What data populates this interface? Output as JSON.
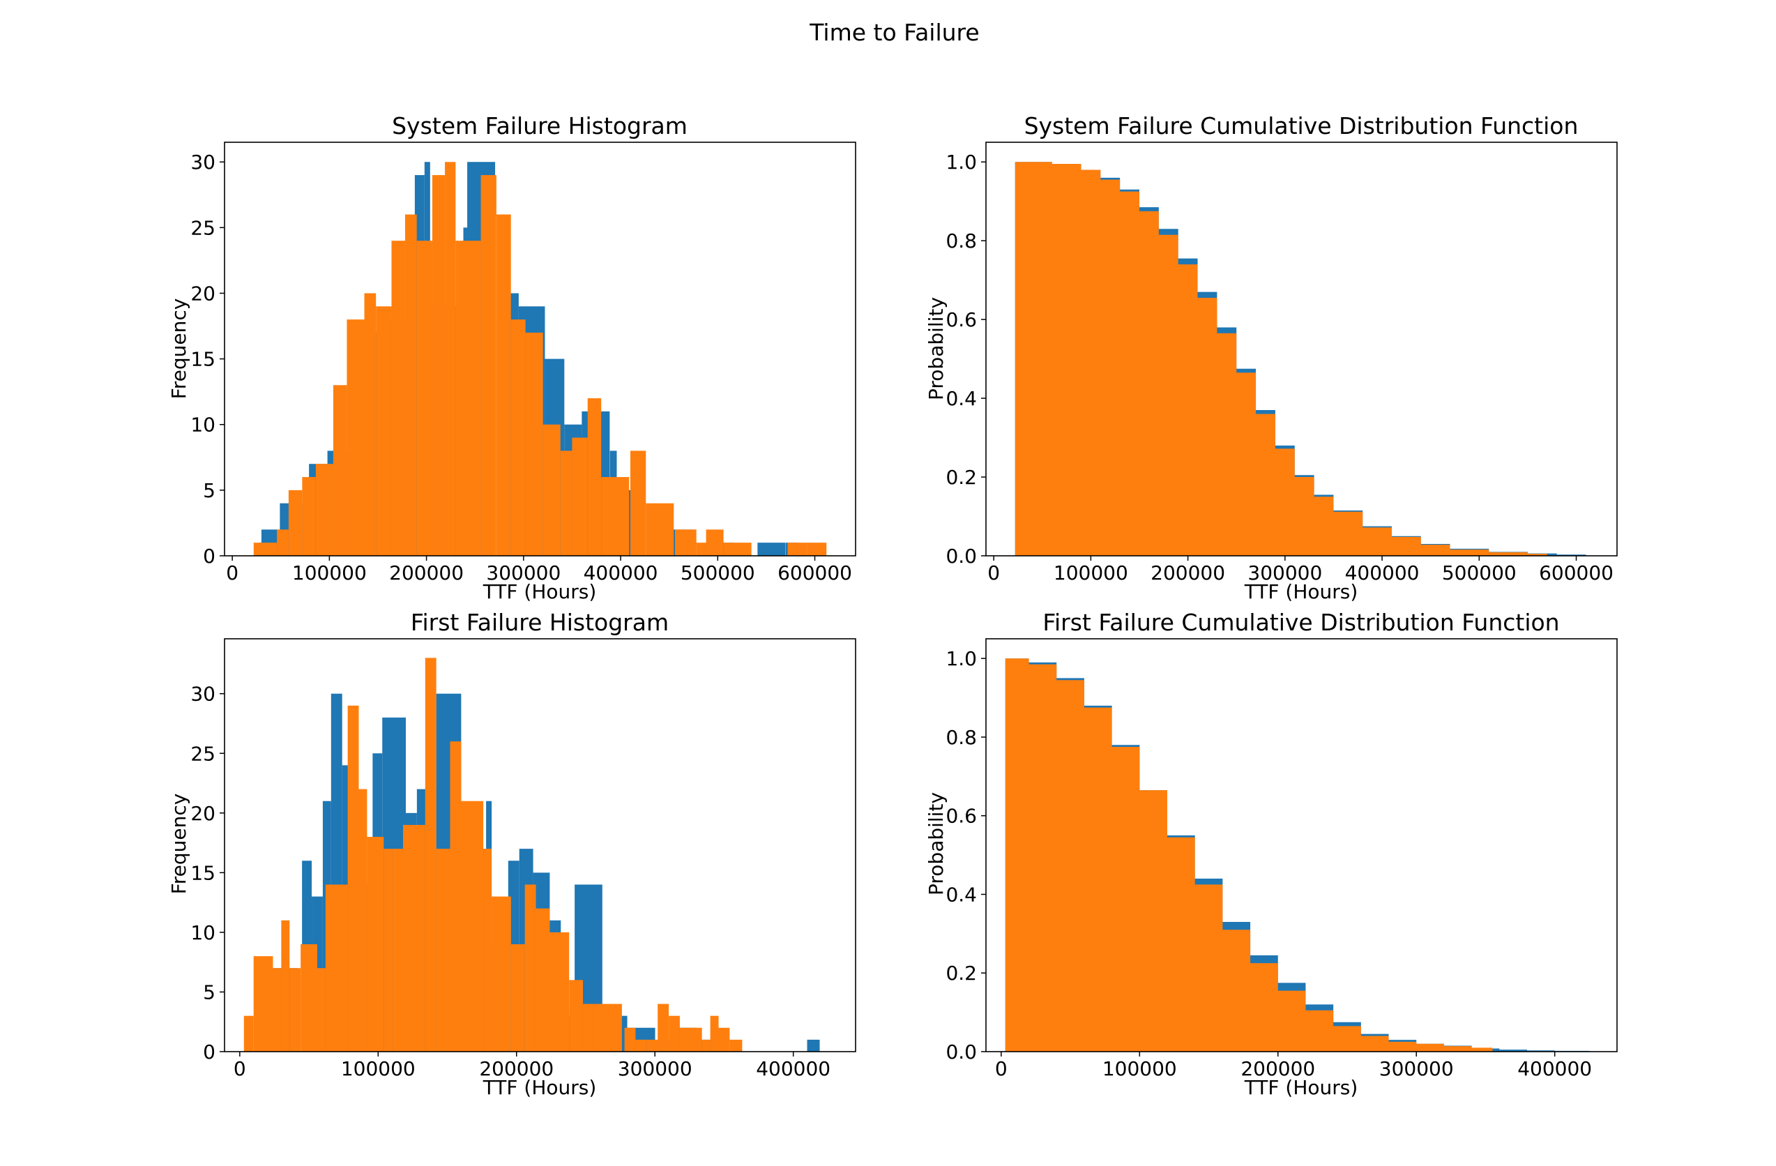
{
  "title": "Time to Failure",
  "colors": {
    "series_a": "#1f77b4",
    "series_b": "#ff7f0e"
  },
  "chart_data": [
    {
      "type": "bar",
      "title": "System Failure Histogram",
      "xlabel": "TTF (Hours)",
      "ylabel": "Frequency",
      "xlim": [
        -8000,
        642000
      ],
      "ylim": [
        0,
        31.5
      ],
      "xticks": [
        0,
        100000,
        200000,
        300000,
        400000,
        500000,
        600000
      ],
      "yticks": [
        0,
        5,
        10,
        15,
        20,
        25,
        30
      ],
      "series": [
        {
          "color": "#1f77b4",
          "bins": [
            [
              27000,
              1
            ],
            [
              30000,
              2
            ],
            [
              49000,
              4
            ],
            [
              79000,
              7
            ],
            [
              98000,
              8
            ],
            [
              128000,
              17
            ],
            [
              158000,
              18
            ],
            [
              188000,
              29
            ],
            [
              198000,
              30
            ],
            [
              203000,
              19
            ],
            [
              238000,
              25
            ],
            [
              242000,
              30
            ],
            [
              283000,
              20
            ],
            [
              295000,
              19
            ],
            [
              322000,
              15
            ],
            [
              342000,
              10
            ],
            [
              360000,
              11
            ],
            [
              389000,
              8
            ],
            [
              396000,
              5
            ],
            [
              432000,
              1
            ],
            [
              447000,
              2
            ],
            [
              488000,
              1
            ],
            [
              541000,
              1
            ],
            [
              570000,
              1
            ]
          ]
        },
        {
          "color": "#ff7f0e",
          "bins": [
            [
              22000,
              1
            ],
            [
              46000,
              2
            ],
            [
              58000,
              5
            ],
            [
              72000,
              6
            ],
            [
              86000,
              7
            ],
            [
              104000,
              13
            ],
            [
              118000,
              18
            ],
            [
              136000,
              20
            ],
            [
              148000,
              19
            ],
            [
              164000,
              24
            ],
            [
              178000,
              26
            ],
            [
              190000,
              24
            ],
            [
              206000,
              29
            ],
            [
              219000,
              30
            ],
            [
              230000,
              24
            ],
            [
              256000,
              29
            ],
            [
              272000,
              26
            ],
            [
              287000,
              18
            ],
            [
              302000,
              17
            ],
            [
              320000,
              10
            ],
            [
              338000,
              8
            ],
            [
              350000,
              9
            ],
            [
              366000,
              12
            ],
            [
              380000,
              6
            ],
            [
              410000,
              8
            ],
            [
              426000,
              4
            ],
            [
              456000,
              2
            ],
            [
              478000,
              1
            ],
            [
              488000,
              2
            ],
            [
              506000,
              1
            ],
            [
              572000,
              1
            ],
            [
              592000,
              1
            ],
            [
              612000,
              0
            ]
          ]
        }
      ]
    },
    {
      "type": "area",
      "title": "System Failure Cumulative Distribution Function",
      "xlabel": "TTF (Hours)",
      "ylabel": "Probability",
      "xlim": [
        -8000,
        642000
      ],
      "ylim": [
        0,
        1.05
      ],
      "xticks": [
        0,
        100000,
        200000,
        300000,
        400000,
        500000,
        600000
      ],
      "yticks": [
        0.0,
        0.2,
        0.4,
        0.6,
        0.8,
        1.0
      ],
      "series": [
        {
          "color": "#1f77b4",
          "points": [
            [
              22000,
              1.0
            ],
            [
              60000,
              0.995
            ],
            [
              90000,
              0.98
            ],
            [
              110000,
              0.96
            ],
            [
              130000,
              0.93
            ],
            [
              150000,
              0.885
            ],
            [
              170000,
              0.83
            ],
            [
              190000,
              0.755
            ],
            [
              210000,
              0.67
            ],
            [
              230000,
              0.58
            ],
            [
              250000,
              0.475
            ],
            [
              270000,
              0.37
            ],
            [
              290000,
              0.28
            ],
            [
              310000,
              0.205
            ],
            [
              330000,
              0.155
            ],
            [
              350000,
              0.115
            ],
            [
              380000,
              0.075
            ],
            [
              410000,
              0.05
            ],
            [
              440000,
              0.03
            ],
            [
              470000,
              0.018
            ],
            [
              510000,
              0.01
            ],
            [
              550000,
              0.006
            ],
            [
              580000,
              0.003
            ],
            [
              610000,
              0.001
            ]
          ]
        },
        {
          "color": "#ff7f0e",
          "points": [
            [
              22000,
              1.0
            ],
            [
              60000,
              0.995
            ],
            [
              90000,
              0.98
            ],
            [
              110000,
              0.955
            ],
            [
              130000,
              0.925
            ],
            [
              150000,
              0.875
            ],
            [
              170000,
              0.815
            ],
            [
              190000,
              0.74
            ],
            [
              210000,
              0.655
            ],
            [
              230000,
              0.565
            ],
            [
              250000,
              0.465
            ],
            [
              270000,
              0.36
            ],
            [
              290000,
              0.272
            ],
            [
              310000,
              0.2
            ],
            [
              330000,
              0.15
            ],
            [
              350000,
              0.112
            ],
            [
              380000,
              0.072
            ],
            [
              410000,
              0.048
            ],
            [
              440000,
              0.028
            ],
            [
              470000,
              0.016
            ],
            [
              510000,
              0.009
            ],
            [
              550000,
              0.005
            ],
            [
              570000,
              0.002
            ]
          ]
        }
      ]
    },
    {
      "type": "bar",
      "title": "First Failure Histogram",
      "xlabel": "TTF (Hours)",
      "ylabel": "Frequency",
      "xlim": [
        -11000,
        445000
      ],
      "ylim": [
        0,
        34.6
      ],
      "xticks": [
        0,
        100000,
        200000,
        300000,
        400000
      ],
      "yticks": [
        0,
        5,
        10,
        15,
        20,
        25,
        30
      ],
      "series": [
        {
          "color": "#1f77b4",
          "bins": [
            [
              22000,
              7
            ],
            [
              45000,
              16
            ],
            [
              52000,
              13
            ],
            [
              60000,
              21
            ],
            [
              66000,
              30
            ],
            [
              74000,
              24
            ],
            [
              80000,
              14
            ],
            [
              96000,
              25
            ],
            [
              103000,
              28
            ],
            [
              120000,
              20
            ],
            [
              128000,
              22
            ],
            [
              142000,
              30
            ],
            [
              160000,
              17
            ],
            [
              178000,
              21
            ],
            [
              182000,
              9
            ],
            [
              194000,
              16
            ],
            [
              202000,
              17
            ],
            [
              212000,
              15
            ],
            [
              224000,
              11
            ],
            [
              232000,
              3
            ],
            [
              242000,
              14
            ],
            [
              262000,
              3
            ],
            [
              280000,
              2
            ],
            [
              302000,
              1
            ],
            [
              314000,
              2
            ],
            [
              330000,
              1
            ],
            [
              410000,
              1
            ]
          ]
        },
        {
          "color": "#ff7f0e",
          "bins": [
            [
              3000,
              3
            ],
            [
              10000,
              8
            ],
            [
              24000,
              7
            ],
            [
              30000,
              11
            ],
            [
              36000,
              7
            ],
            [
              44000,
              9
            ],
            [
              56000,
              7
            ],
            [
              62000,
              14
            ],
            [
              78000,
              29
            ],
            [
              86000,
              22
            ],
            [
              92000,
              18
            ],
            [
              104000,
              17
            ],
            [
              110000,
              17
            ],
            [
              118000,
              19
            ],
            [
              122000,
              19
            ],
            [
              134000,
              33
            ],
            [
              142000,
              17
            ],
            [
              152000,
              26
            ],
            [
              160000,
              21
            ],
            [
              176000,
              17
            ],
            [
              182000,
              13
            ],
            [
              196000,
              9
            ],
            [
              206000,
              14
            ],
            [
              214000,
              12
            ],
            [
              224000,
              10
            ],
            [
              238000,
              6
            ],
            [
              248000,
              4
            ],
            [
              256000,
              4
            ],
            [
              278000,
              2
            ],
            [
              286000,
              1
            ],
            [
              294000,
              1
            ],
            [
              302000,
              4
            ],
            [
              310000,
              3
            ],
            [
              318000,
              2
            ],
            [
              334000,
              1
            ],
            [
              340000,
              3
            ],
            [
              346000,
              2
            ],
            [
              354000,
              1
            ]
          ]
        }
      ]
    },
    {
      "type": "area",
      "title": "First Failure Cumulative Distribution Function",
      "xlabel": "TTF (Hours)",
      "ylabel": "Probability",
      "xlim": [
        -11000,
        445000
      ],
      "ylim": [
        0,
        1.05
      ],
      "xticks": [
        0,
        100000,
        200000,
        300000,
        400000
      ],
      "yticks": [
        0.0,
        0.2,
        0.4,
        0.6,
        0.8,
        1.0
      ],
      "series": [
        {
          "color": "#1f77b4",
          "points": [
            [
              3000,
              1.0
            ],
            [
              20000,
              0.99
            ],
            [
              40000,
              0.95
            ],
            [
              60000,
              0.88
            ],
            [
              80000,
              0.78
            ],
            [
              100000,
              0.665
            ],
            [
              120000,
              0.55
            ],
            [
              140000,
              0.44
            ],
            [
              160000,
              0.33
            ],
            [
              180000,
              0.245
            ],
            [
              200000,
              0.175
            ],
            [
              220000,
              0.12
            ],
            [
              240000,
              0.075
            ],
            [
              260000,
              0.045
            ],
            [
              280000,
              0.03
            ],
            [
              300000,
              0.02
            ],
            [
              320000,
              0.015
            ],
            [
              340000,
              0.008
            ],
            [
              360000,
              0.005
            ],
            [
              380000,
              0.003
            ],
            [
              400000,
              0.002
            ],
            [
              425000,
              0.001
            ]
          ]
        },
        {
          "color": "#ff7f0e",
          "points": [
            [
              3000,
              1.0
            ],
            [
              20000,
              0.985
            ],
            [
              40000,
              0.945
            ],
            [
              60000,
              0.875
            ],
            [
              80000,
              0.775
            ],
            [
              100000,
              0.665
            ],
            [
              120000,
              0.545
            ],
            [
              140000,
              0.425
            ],
            [
              160000,
              0.31
            ],
            [
              180000,
              0.225
            ],
            [
              200000,
              0.155
            ],
            [
              220000,
              0.105
            ],
            [
              240000,
              0.065
            ],
            [
              260000,
              0.04
            ],
            [
              280000,
              0.025
            ],
            [
              300000,
              0.02
            ],
            [
              320000,
              0.014
            ],
            [
              340000,
              0.01
            ],
            [
              355000,
              0.003
            ]
          ]
        }
      ]
    }
  ]
}
